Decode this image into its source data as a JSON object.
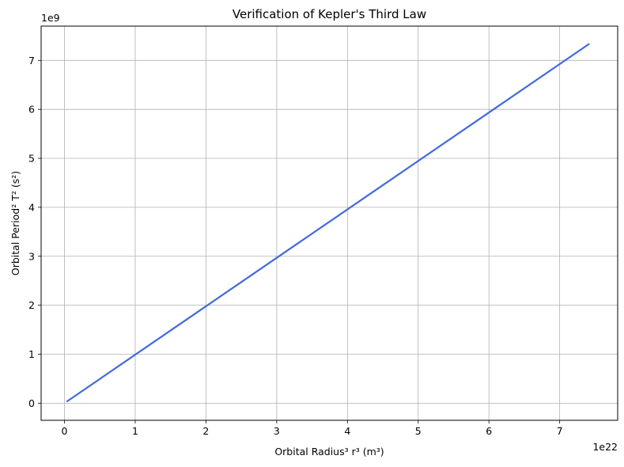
{
  "chart_data": {
    "type": "line",
    "title": "Verification of Kepler's Third Law",
    "xlabel": "Orbital Radius³ r³ (m³)",
    "ylabel": "Orbital Period² T² (s²)",
    "x_offset_label": "1e22",
    "y_offset_label": "1e9",
    "xlim": [
      -0.33,
      7.82
    ],
    "ylim": [
      -0.35,
      7.7
    ],
    "xticks": [
      0,
      1,
      2,
      3,
      4,
      5,
      6,
      7
    ],
    "yticks": [
      0,
      1,
      2,
      3,
      4,
      5,
      6,
      7
    ],
    "grid": true,
    "series": [
      {
        "color": "#4169e1",
        "x": [
          0.03,
          7.42
        ],
        "y": [
          0.03,
          7.34
        ]
      }
    ]
  }
}
